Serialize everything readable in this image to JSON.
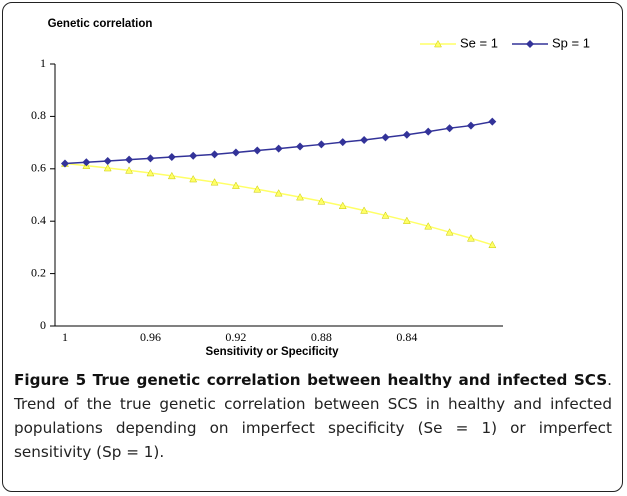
{
  "chart_data": {
    "type": "line",
    "y_label": "Genetic correlation",
    "x_label": "Sensitivity or Specificity",
    "categories": [
      "1",
      null,
      null,
      null,
      "0.96",
      null,
      null,
      null,
      "0.92",
      null,
      null,
      null,
      "0.88",
      null,
      null,
      null,
      "0.84",
      null,
      null,
      null,
      null
    ],
    "series": [
      {
        "name": "Se = 1",
        "color": "#ffff66",
        "marker": "triangle",
        "values": [
          0.62,
          0.612,
          0.603,
          0.594,
          0.584,
          0.573,
          0.561,
          0.549,
          0.536,
          0.522,
          0.507,
          0.492,
          0.476,
          0.459,
          0.441,
          0.422,
          0.402,
          0.381,
          0.358,
          0.335,
          0.31
        ]
      },
      {
        "name": "Sp = 1",
        "color": "#333399",
        "marker": "diamond",
        "values": [
          0.62,
          0.625,
          0.63,
          0.635,
          0.64,
          0.645,
          0.65,
          0.655,
          0.662,
          0.67,
          0.677,
          0.685,
          0.693,
          0.702,
          0.71,
          0.72,
          0.73,
          0.742,
          0.755,
          0.765,
          0.78
        ]
      }
    ],
    "ylim": [
      0,
      1
    ],
    "yticks": [
      0,
      0.2,
      0.4,
      0.6,
      0.8,
      1
    ],
    "grid": false,
    "legend": "top-right"
  },
  "caption": {
    "title": "Figure 5 True genetic correlation between healthy and infected SCS",
    "text": ". Trend of the true genetic correlation between SCS in healthy and infected populations depending on imperfect specificity (Se = 1) or imperfect sensitivity (Sp = 1)."
  }
}
